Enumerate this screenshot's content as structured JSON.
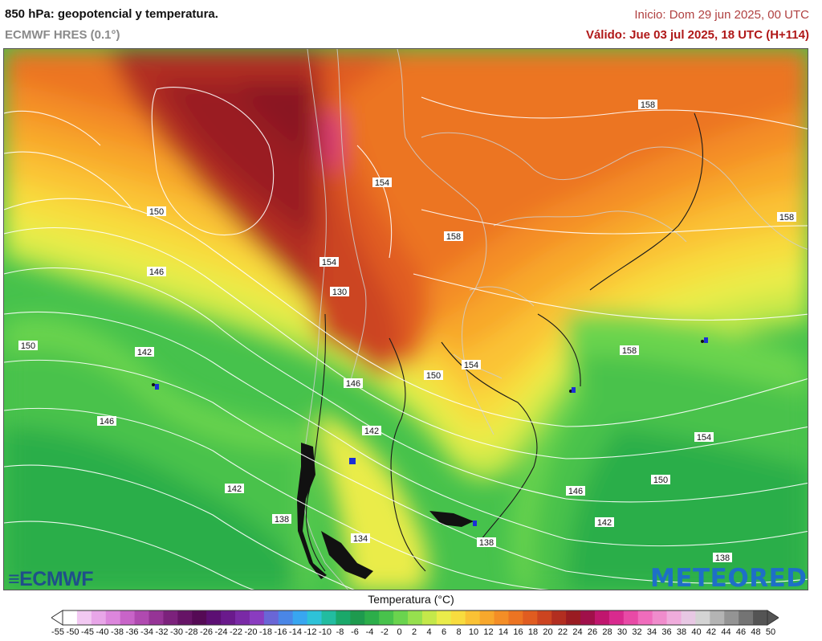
{
  "header": {
    "title": "850 hPa: geopotencial y temperatura.",
    "model": "ECMWF HRES (0.1°)",
    "init": "Inicio: Dom 29 jun 2025, 00 UTC",
    "valid": "Válido: Jue 03 jul 2025, 18 UTC (H+114)"
  },
  "logos": {
    "ecmwf": "ECMWF",
    "meteored": "METEORED"
  },
  "legend": {
    "title": "Temperatura (°C)",
    "ticks": [
      "-55",
      "-50",
      "-45",
      "-40",
      "-38",
      "-36",
      "-34",
      "-32",
      "-30",
      "-28",
      "-26",
      "-24",
      "-22",
      "-20",
      "-18",
      "-16",
      "-14",
      "-12",
      "-10",
      "-8",
      "-6",
      "-4",
      "-2",
      "0",
      "2",
      "4",
      "6",
      "8",
      "10",
      "12",
      "14",
      "16",
      "18",
      "20",
      "22",
      "24",
      "26",
      "28",
      "30",
      "32",
      "34",
      "36",
      "38",
      "40",
      "42",
      "44",
      "46",
      "48",
      "50"
    ],
    "colors": [
      "#ffffff",
      "#f2c9f2",
      "#e8a6e8",
      "#dc86dc",
      "#c864c8",
      "#b04ab0",
      "#963496",
      "#7c227c",
      "#661466",
      "#550a55",
      "#5c0f73",
      "#6a1a8c",
      "#7a2aa6",
      "#8a3cc0",
      "#6a66d6",
      "#4a86e6",
      "#38a6f0",
      "#2ec2d8",
      "#22bca0",
      "#1aa86a",
      "#1e9a4e",
      "#2cae4a",
      "#48c24c",
      "#6ad44e",
      "#96e04e",
      "#c4e84a",
      "#eaec4a",
      "#f8dc3e",
      "#fac234",
      "#f8a82c",
      "#f48e26",
      "#ec7422",
      "#e05c20",
      "#cc4420",
      "#b22e20",
      "#9a1c22",
      "#a0104a",
      "#c0166e",
      "#d82a8e",
      "#e84aa6",
      "#f06cbc",
      "#f08ccc",
      "#f0acdc",
      "#e8c8e4",
      "#d4d4d4",
      "#b4b4b4",
      "#949494",
      "#747474",
      "#545454"
    ]
  },
  "contours": [
    "150",
    "146",
    "142",
    "150",
    "146",
    "142",
    "138",
    "154",
    "154",
    "130",
    "146",
    "142",
    "150",
    "154",
    "158",
    "158",
    "158",
    "158",
    "154",
    "150",
    "146",
    "142",
    "138",
    "138",
    "134"
  ],
  "chart_data": {
    "type": "map",
    "variable": "850 hPa geopotential (dam) and temperature (°C)",
    "geopotential_labels_dam": [
      150,
      146,
      142,
      150,
      146,
      142,
      138,
      154,
      154,
      130,
      146,
      142,
      150,
      154,
      158,
      158,
      158,
      158,
      154,
      150,
      146,
      142,
      138,
      138,
      134
    ],
    "temperature_scale_c": [
      -55,
      -50,
      -45,
      -40,
      -38,
      -36,
      -34,
      -32,
      -30,
      -28,
      -26,
      -24,
      -22,
      -20,
      -18,
      -16,
      -14,
      -12,
      -10,
      -8,
      -6,
      -4,
      -2,
      0,
      2,
      4,
      6,
      8,
      10,
      12,
      14,
      16,
      18,
      20,
      22,
      24,
      26,
      28,
      30,
      32,
      34,
      36,
      38,
      40,
      42,
      44,
      46,
      48,
      50
    ]
  }
}
